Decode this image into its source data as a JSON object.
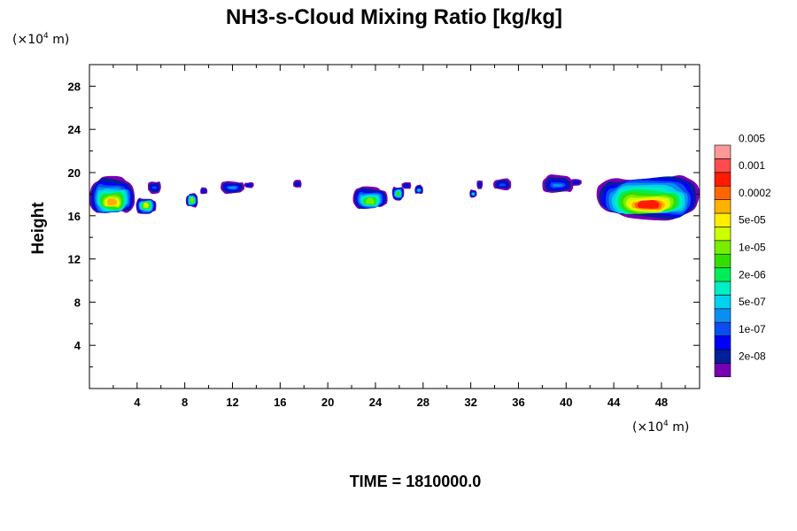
{
  "chart_data": {
    "type": "heatmap",
    "title": "NH3-s-Cloud Mixing Ratio [kg/kg]",
    "ylabel": "Height",
    "x_unit": {
      "prefix": "(×10",
      "exp": "4",
      "suffix": " m)"
    },
    "y_unit": {
      "prefix": "(×10",
      "exp": "4",
      "suffix": " m)"
    },
    "xlim": [
      0,
      51.2
    ],
    "ylim": [
      0,
      30
    ],
    "x_ticks": [
      4,
      8,
      12,
      16,
      20,
      24,
      28,
      32,
      36,
      40,
      44,
      48
    ],
    "y_ticks": [
      4,
      8,
      12,
      16,
      20,
      24,
      28
    ],
    "time_label": "TIME = 1810000.0",
    "colorbar": {
      "colors": [
        "#7700b3",
        "#001f99",
        "#0000ff",
        "#0a4df0",
        "#0a8ff0",
        "#00d2f0",
        "#00eec3",
        "#00ee55",
        "#33dd00",
        "#77ee00",
        "#ccff00",
        "#ffee00",
        "#ffb100",
        "#ff6600",
        "#ff1a00",
        "#ff4c4c",
        "#ff9999"
      ],
      "labels": [
        "2e-08",
        "1e-07",
        "5e-07",
        "2e-06",
        "1e-05",
        "5e-05",
        "0.0002",
        "0.001",
        "0.005"
      ],
      "label_boundaries": [
        2,
        4,
        6,
        8,
        10,
        12,
        14,
        16,
        18
      ]
    },
    "cloud_regions": [
      {
        "x": [
          0,
          3.8
        ],
        "top": 19.4,
        "core": [
          17.6,
          17.0
        ],
        "bottom": 16.2,
        "max_level": 12
      },
      {
        "x": [
          3.9,
          5.6
        ],
        "top": 17.6,
        "core": [
          17.2,
          16.8
        ],
        "bottom": 16.2,
        "max_level": 10
      },
      {
        "x": [
          4.9,
          6.0
        ],
        "top": 19.2,
        "core": null,
        "bottom": 18.1,
        "max_level": 3
      },
      {
        "x": [
          8.1,
          9.1
        ],
        "top": 18.0,
        "core": [
          17.7,
          17.3
        ],
        "bottom": 16.8,
        "max_level": 9
      },
      {
        "x": [
          9.3,
          9.9
        ],
        "top": 18.6,
        "core": null,
        "bottom": 18.0,
        "max_level": 2
      },
      {
        "x": [
          11.0,
          13.0
        ],
        "top": 19.2,
        "core": null,
        "bottom": 18.1,
        "max_level": 4
      },
      {
        "x": [
          13.0,
          13.8
        ],
        "top": 19.1,
        "core": null,
        "bottom": 18.6,
        "max_level": 2
      },
      {
        "x": [
          17.1,
          17.8
        ],
        "top": 19.3,
        "core": null,
        "bottom": 18.6,
        "max_level": 2
      },
      {
        "x": [
          22.1,
          25.0
        ],
        "top": 18.6,
        "core": [
          17.6,
          17.1
        ],
        "bottom": 16.7,
        "max_level": 9
      },
      {
        "x": [
          25.4,
          26.4
        ],
        "top": 18.7,
        "core": [
          18.2,
          17.9
        ],
        "bottom": 17.5,
        "max_level": 8
      },
      {
        "x": [
          26.2,
          27.0
        ],
        "top": 19.1,
        "core": null,
        "bottom": 18.5,
        "max_level": 2
      },
      {
        "x": [
          27.3,
          28.0
        ],
        "top": 18.8,
        "core": null,
        "bottom": 18.0,
        "max_level": 5
      },
      {
        "x": [
          31.9,
          32.5
        ],
        "top": 18.4,
        "core": null,
        "bottom": 17.7,
        "max_level": 5
      },
      {
        "x": [
          32.5,
          33.0
        ],
        "top": 19.3,
        "core": null,
        "bottom": 18.5,
        "max_level": 2
      },
      {
        "x": [
          33.9,
          35.4
        ],
        "top": 19.4,
        "core": null,
        "bottom": 18.4,
        "max_level": 3
      },
      {
        "x": [
          38.0,
          40.6
        ],
        "top": 19.7,
        "core": null,
        "bottom": 18.1,
        "max_level": 4
      },
      {
        "x": [
          40.4,
          41.3
        ],
        "top": 19.4,
        "core": null,
        "bottom": 18.8,
        "max_level": 2
      },
      {
        "x": [
          42.6,
          51.2
        ],
        "top": 19.7,
        "core": [
          17.4,
          16.7
        ],
        "bottom": 15.9,
        "max_level": 14
      }
    ]
  }
}
